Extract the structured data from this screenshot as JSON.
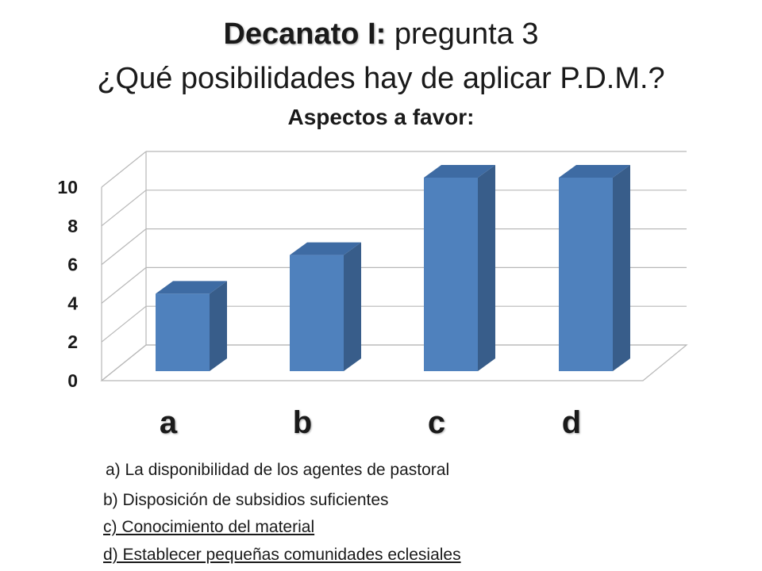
{
  "header": {
    "title_bold": "Decanato I:",
    "title_rest": " pregunta 3",
    "question": "¿Qué posibilidades hay de aplicar P.D.M.?",
    "subtitle": "Aspectos a favor:"
  },
  "chart_data": {
    "type": "bar",
    "style": "3d-column",
    "categories": [
      "a",
      "b",
      "c",
      "d"
    ],
    "values": [
      4,
      6,
      10,
      10
    ],
    "ylim": [
      0,
      10
    ],
    "yticks": [
      "0",
      "2",
      "4",
      "6",
      "8",
      "10"
    ],
    "grid": true,
    "colors": {
      "front": "#4F81BD",
      "side": "#385D8A",
      "top": "#3E6BA3"
    }
  },
  "legend": {
    "a": "a) La disponibilidad de los agentes de pastoral",
    "b": "b) Disposición de subsidios suficientes",
    "c": "c) Conocimiento del material",
    "d": "d) Establecer pequeñas comunidades eclesiales"
  }
}
